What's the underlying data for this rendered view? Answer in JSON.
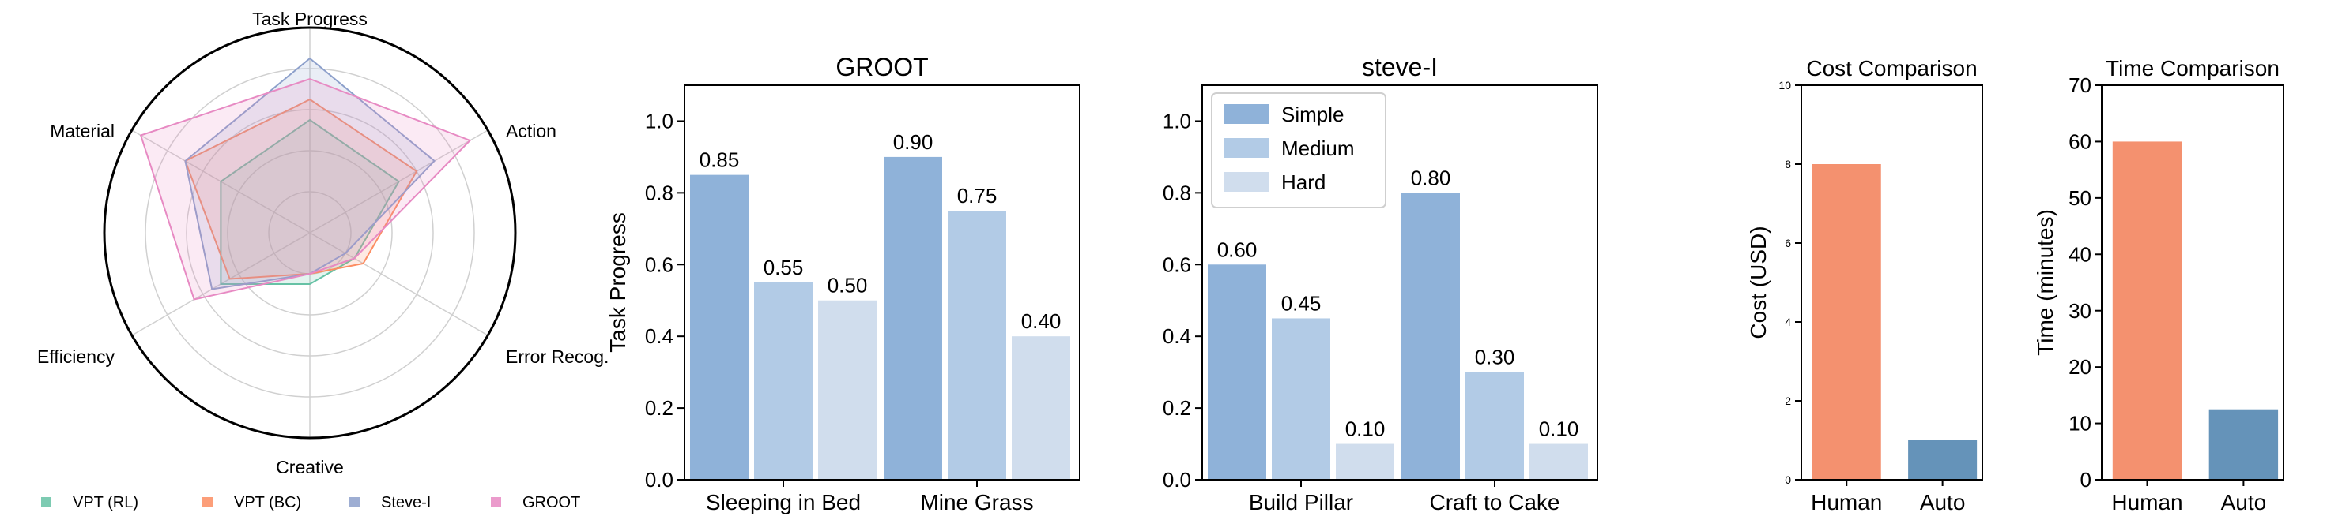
{
  "colors": {
    "vpt_rl": "#66c2a5",
    "vpt_bc": "#fc8d62",
    "steve": "#8da0cb",
    "groot": "#e78ac3",
    "simple": "#8fb2d9",
    "medium": "#b2cbe6",
    "hard": "#d0dded",
    "human": "#f4916f",
    "auto": "#6593b9"
  },
  "chart_data": [
    {
      "type": "radar",
      "axes": [
        "Task Progress",
        "Action",
        "Error Recog.",
        "Creative",
        "Efficiency",
        "Material"
      ],
      "series": [
        {
          "name": "VPT (RL)",
          "values": [
            0.55,
            0.5,
            0.25,
            0.25,
            0.5,
            0.5
          ]
        },
        {
          "name": "VPT (BC)",
          "values": [
            0.65,
            0.6,
            0.3,
            0.2,
            0.45,
            0.7
          ]
        },
        {
          "name": "Steve-I",
          "values": [
            0.85,
            0.7,
            0.2,
            0.2,
            0.55,
            0.7
          ]
        },
        {
          "name": "GROOT",
          "values": [
            0.75,
            0.9,
            0.25,
            0.2,
            0.65,
            0.95
          ]
        }
      ],
      "legend_position": "bottom"
    },
    {
      "type": "bar",
      "title": "GROOT",
      "ylabel": "Task Progress",
      "categories": [
        "Sleeping in Bed",
        "Mine Grass"
      ],
      "series": [
        {
          "name": "Simple",
          "values": [
            0.85,
            0.9
          ]
        },
        {
          "name": "Medium",
          "values": [
            0.55,
            0.75
          ]
        },
        {
          "name": "Hard",
          "values": [
            0.5,
            0.4
          ]
        }
      ],
      "value_labels": [
        [
          "0.85",
          "0.55",
          "0.50"
        ],
        [
          "0.90",
          "0.75",
          "0.40"
        ]
      ],
      "ylim": [
        0,
        1.1
      ],
      "yticks": [
        "0.0",
        "0.2",
        "0.4",
        "0.6",
        "0.8",
        "1.0"
      ]
    },
    {
      "type": "bar",
      "title": "steve-I",
      "categories": [
        "Build Pillar",
        "Craft to Cake"
      ],
      "series": [
        {
          "name": "Simple",
          "values": [
            0.6,
            0.8
          ]
        },
        {
          "name": "Medium",
          "values": [
            0.45,
            0.3
          ]
        },
        {
          "name": "Hard",
          "values": [
            0.1,
            0.1
          ]
        }
      ],
      "value_labels": [
        [
          "0.60",
          "0.45",
          "0.10"
        ],
        [
          "0.80",
          "0.30",
          "0.10"
        ]
      ],
      "ylim": [
        0,
        1.1
      ],
      "yticks": [
        "0.0",
        "0.2",
        "0.4",
        "0.6",
        "0.8",
        "1.0"
      ],
      "legend": [
        "Simple",
        "Medium",
        "Hard"
      ],
      "legend_position": "top-left"
    },
    {
      "type": "bar",
      "title": "Cost Comparison",
      "ylabel": "Cost (USD)",
      "categories": [
        "Human",
        "Auto"
      ],
      "values": [
        8,
        1
      ],
      "ylim": [
        0,
        10
      ],
      "yticks": [
        "0",
        "2",
        "4",
        "6",
        "8",
        "10"
      ]
    },
    {
      "type": "bar",
      "title": "Time Comparison",
      "ylabel": "Time (minutes)",
      "categories": [
        "Human",
        "Auto"
      ],
      "values": [
        60,
        12.5
      ],
      "ylim": [
        0,
        70
      ],
      "yticks": [
        "0",
        "10",
        "20",
        "30",
        "40",
        "50",
        "60",
        "70"
      ]
    }
  ]
}
